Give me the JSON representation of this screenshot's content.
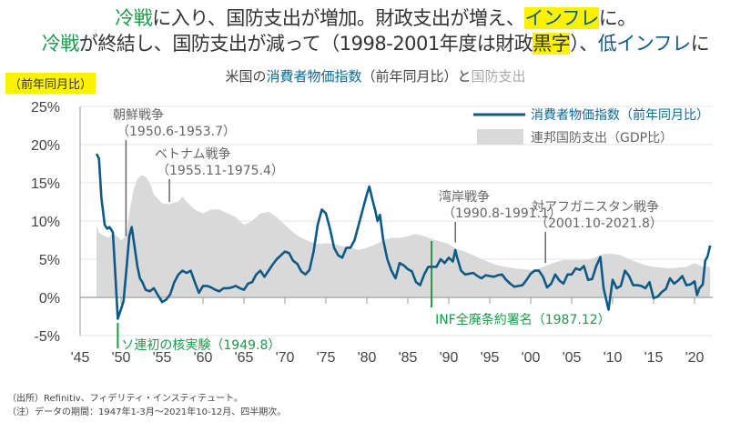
{
  "headline": {
    "line1": [
      {
        "t": "冷戦",
        "c": "g"
      },
      {
        "t": "に入り、国防支出が増加。財政支出が増え、",
        "c": ""
      },
      {
        "t": "インフレ",
        "c": "b y"
      },
      {
        "t": "に。",
        "c": ""
      }
    ],
    "line2": [
      {
        "t": "冷戦",
        "c": "g"
      },
      {
        "t": "が終結し、国防支出が減って（1998-2001年度は財政",
        "c": ""
      },
      {
        "t": "黒字",
        "c": "y"
      },
      {
        "t": "）、",
        "c": ""
      },
      {
        "t": "低インフレ",
        "c": "b"
      },
      {
        "t": "に",
        "c": ""
      }
    ]
  },
  "chart_data": {
    "type": "line+area",
    "title_parts": [
      {
        "t": "米国の",
        "c": ""
      },
      {
        "t": "消費者物価指数",
        "c": "b"
      },
      {
        "t": "（前年同月比）と",
        "c": ""
      },
      {
        "t": "国防支出",
        "c": "gr"
      }
    ],
    "ylabel": "（前年同月比）",
    "ylim": [
      -5,
      25
    ],
    "xlim": [
      1945,
      2022.5
    ],
    "yticks": [
      "25%",
      "20%",
      "15%",
      "10%",
      "5%",
      "0%",
      "-5%"
    ],
    "ytick_values": [
      25,
      20,
      15,
      10,
      5,
      0,
      -5
    ],
    "xticks": [
      "'45",
      "'50",
      "'55",
      "'60",
      "'65",
      "'70",
      "'75",
      "'80",
      "'85",
      "'90",
      "'95",
      "'00",
      "'05",
      "'10",
      "'15",
      "'20"
    ],
    "xtick_values": [
      1945,
      1950,
      1955,
      1960,
      1965,
      1970,
      1975,
      1980,
      1985,
      1990,
      1995,
      2000,
      2005,
      2010,
      2015,
      2020
    ],
    "grid": true,
    "legend_placement": "top-right",
    "series": [
      {
        "name": "消費者物価指数（前年同月比）",
        "color": "#0d5a86",
        "kind": "line",
        "x": [
          1947.0,
          1947.3,
          1947.6,
          1948.0,
          1948.3,
          1948.6,
          1949.0,
          1949.3,
          1949.6,
          1950.0,
          1950.3,
          1950.6,
          1951.0,
          1951.3,
          1951.6,
          1952.0,
          1952.3,
          1952.6,
          1953.0,
          1953.5,
          1954.0,
          1954.5,
          1955.0,
          1955.5,
          1956.0,
          1956.5,
          1957.0,
          1957.5,
          1958.0,
          1958.5,
          1959.0,
          1959.5,
          1960.0,
          1960.5,
          1961.0,
          1961.5,
          1962.0,
          1962.5,
          1963.0,
          1963.5,
          1964.0,
          1964.5,
          1965.0,
          1965.5,
          1966.0,
          1966.5,
          1967.0,
          1967.5,
          1968.0,
          1968.5,
          1969.0,
          1969.5,
          1970.0,
          1970.5,
          1971.0,
          1971.5,
          1972.0,
          1972.5,
          1973.0,
          1973.5,
          1974.0,
          1974.5,
          1975.0,
          1975.5,
          1976.0,
          1976.5,
          1977.0,
          1977.5,
          1978.0,
          1978.5,
          1979.0,
          1979.5,
          1980.0,
          1980.3,
          1980.7,
          1981.0,
          1981.3,
          1981.6,
          1982.0,
          1982.5,
          1983.0,
          1983.5,
          1984.0,
          1984.5,
          1985.0,
          1985.5,
          1986.0,
          1986.5,
          1987.0,
          1987.5,
          1988.0,
          1988.5,
          1989.0,
          1989.5,
          1990.0,
          1990.5,
          1990.8,
          1991.0,
          1991.5,
          1992.0,
          1992.5,
          1993.0,
          1993.5,
          1994.0,
          1994.5,
          1995.0,
          1995.5,
          1996.0,
          1996.5,
          1997.0,
          1997.5,
          1998.0,
          1998.5,
          1999.0,
          1999.5,
          2000.0,
          2000.5,
          2001.0,
          2001.5,
          2002.0,
          2002.5,
          2003.0,
          2003.5,
          2004.0,
          2004.5,
          2005.0,
          2005.5,
          2006.0,
          2006.5,
          2007.0,
          2007.5,
          2008.0,
          2008.5,
          2008.9,
          2009.3,
          2009.5,
          2010.0,
          2010.5,
          2011.0,
          2011.5,
          2012.0,
          2012.5,
          2013.0,
          2013.5,
          2014.0,
          2014.5,
          2015.0,
          2015.5,
          2016.0,
          2016.5,
          2017.0,
          2017.5,
          2018.0,
          2018.5,
          2019.0,
          2019.5,
          2020.0,
          2020.3,
          2020.6,
          2021.0,
          2021.3,
          2021.6,
          2021.9
        ],
        "values": [
          18.8,
          18.2,
          13,
          9.5,
          9,
          9.2,
          8.5,
          3,
          -2.8,
          -1.5,
          -0.5,
          3,
          8,
          9.2,
          7,
          4,
          2.5,
          2,
          1,
          0.8,
          1.2,
          0.3,
          -0.6,
          -0.3,
          0.4,
          2,
          3,
          3.5,
          3.2,
          3.5,
          2,
          0.6,
          1.5,
          1.5,
          1.3,
          1.0,
          0.8,
          1.2,
          1.2,
          1.3,
          1.5,
          1.2,
          1.0,
          1.8,
          2,
          3,
          3.5,
          2.7,
          3.5,
          4.3,
          5,
          5.5,
          6,
          5.8,
          4.8,
          4.4,
          3.4,
          3.0,
          3.6,
          6,
          9.5,
          11.5,
          11,
          9,
          6.5,
          5.5,
          5.2,
          6.5,
          6.5,
          7.5,
          9.5,
          11.5,
          13.5,
          14.5,
          12.7,
          11.5,
          10,
          10.8,
          7.5,
          5,
          3.5,
          2.5,
          4.5,
          4.2,
          3.7,
          3.4,
          2,
          1.6,
          3,
          4,
          4,
          4,
          5,
          4.5,
          5.2,
          4.7,
          6.2,
          5.3,
          3.5,
          3,
          3.1,
          3.2,
          2.8,
          2.5,
          2.9,
          2.8,
          2.7,
          2.9,
          3.0,
          2.3,
          1.8,
          1.4,
          1.5,
          1.6,
          2.3,
          3.1,
          3.5,
          3.5,
          2.7,
          1.3,
          1.8,
          3,
          2.2,
          1.8,
          3,
          3.0,
          3.8,
          3.6,
          4.1,
          2.3,
          2.4,
          4.1,
          5.3,
          1.2,
          -0.7,
          -1.6,
          2.3,
          1.2,
          1.5,
          3.5,
          2.8,
          1.6,
          1.6,
          1.5,
          1.2,
          2.0,
          -0.1,
          0.1,
          0.7,
          1.1,
          2.5,
          1.8,
          2.2,
          2.8,
          1.6,
          1.7,
          2.1,
          0.3,
          1.2,
          1.7,
          4.8,
          5.4,
          6.8
        ]
      },
      {
        "name": "連邦国防支出（GDP比）",
        "color": "#d9d9d9",
        "kind": "area",
        "x": [
          1947,
          1947.3,
          1948,
          1948.5,
          1949,
          1950,
          1950.6,
          1951,
          1951.5,
          1952,
          1952.5,
          1953,
          1953.5,
          1954,
          1955,
          1956,
          1957,
          1957.5,
          1958,
          1959,
          1960,
          1961,
          1962,
          1963,
          1964,
          1965,
          1966,
          1967,
          1968,
          1969,
          1970,
          1971,
          1972,
          1973,
          1974,
          1975,
          1976,
          1977,
          1978,
          1979,
          1980,
          1981,
          1982,
          1983,
          1984,
          1985,
          1986,
          1987,
          1988,
          1989,
          1990,
          1991,
          1992,
          1993,
          1994,
          1995,
          1996,
          1997,
          1998,
          1999,
          2000,
          2001,
          2002,
          2003,
          2004,
          2005,
          2006,
          2007,
          2008,
          2009,
          2010,
          2011,
          2012,
          2013,
          2014,
          2015,
          2016,
          2017,
          2018,
          2019,
          2020,
          2021,
          2021.9
        ],
        "values": [
          9.5,
          8.5,
          8,
          7.8,
          8.5,
          7.5,
          8,
          11,
          14,
          15.5,
          16,
          15.8,
          15,
          13.5,
          12.3,
          12.2,
          12.6,
          13.2,
          12.5,
          11.5,
          11,
          11.5,
          11.5,
          11,
          10.5,
          9.5,
          10,
          11,
          11.2,
          10.5,
          9.5,
          8.5,
          7.8,
          7.3,
          7,
          7.1,
          7,
          6.7,
          6.5,
          6.2,
          6.5,
          6.9,
          7.5,
          7.8,
          7.8,
          8,
          8.3,
          8,
          7.6,
          7.3,
          7,
          6.3,
          6,
          5.5,
          5,
          4.6,
          4.2,
          4,
          3.8,
          3.7,
          3.6,
          3.8,
          4.2,
          4.6,
          4.9,
          4.9,
          4.9,
          4.9,
          5.3,
          5.7,
          5.7,
          5.5,
          5,
          4.6,
          4.2,
          4,
          3.9,
          3.8,
          3.9,
          4,
          4.5,
          4.0,
          4.0
        ]
      }
    ],
    "annotations": [
      {
        "label": "朝鮮戦争",
        "range": "（1950.6-1953.7）",
        "x": 1950.6,
        "y": 8,
        "color": "#666"
      },
      {
        "label": "ベトナム戦争",
        "range": "（1955.11-1975.4）",
        "x": 1955.9,
        "y": 12.5,
        "color": "#666"
      },
      {
        "label": "湾岸戦争",
        "range": "（1990.8-1991.1）",
        "x": 1990.8,
        "y": 7.2,
        "color": "#666"
      },
      {
        "label": "対アフガニスタン戦争",
        "range": "（2001.10-2021.8）",
        "x": 2001.8,
        "y": 4.5,
        "color": "#666"
      },
      {
        "label": "ソ連初の核実験（1949.8）",
        "x": 1949.6,
        "color": "#1a9a4a"
      },
      {
        "label": "INF全廃条約署名（1987.12）",
        "x": 1987.9,
        "color": "#1a9a4a"
      }
    ]
  },
  "notes": [
    "（出所）Refinitiv、フィデリティ・インスティテュート。",
    "（注）データの期間：1947年1-3月～2021年10-12月、四半期次。"
  ]
}
